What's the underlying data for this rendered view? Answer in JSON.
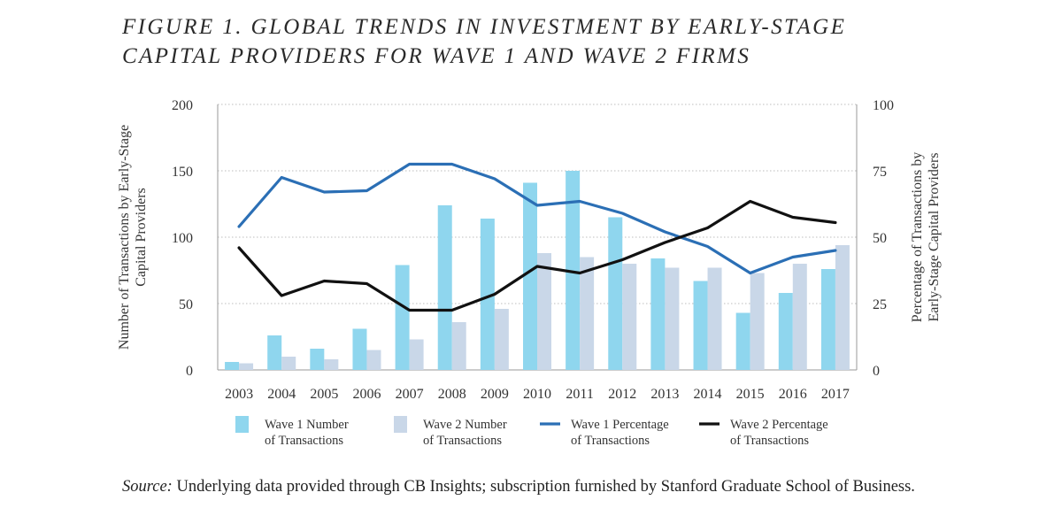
{
  "title": {
    "line1": "FIGURE 1. GLOBAL TRENDS IN INVESTMENT BY EARLY-STAGE",
    "line2": "CAPITAL PROVIDERS FOR WAVE 1 AND WAVE 2 FIRMS"
  },
  "source": {
    "label": "Source:",
    "text": " Underlying data provided through CB Insights; subscription furnished by Stanford Graduate School of Business."
  },
  "chart_data": {
    "type": "bar",
    "categories": [
      "2003",
      "2004",
      "2005",
      "2006",
      "2007",
      "2008",
      "2009",
      "2010",
      "2011",
      "2012",
      "2013",
      "2014",
      "2015",
      "2016",
      "2017"
    ],
    "y_left": {
      "label": [
        "Number of Transactions by Early-Stage",
        "Capital Providers"
      ],
      "ylim": [
        0,
        200
      ],
      "ticks": [
        "0",
        "50",
        "100",
        "150",
        "200"
      ]
    },
    "y_right": {
      "label": [
        "Percentage of Transactions by",
        "Early-Stage Capital Providers"
      ],
      "ylim": [
        0,
        100
      ],
      "ticks": [
        "0",
        "25",
        "50",
        "75",
        "100"
      ]
    },
    "grid": "horizontal dotted",
    "legend_position": "bottom",
    "series": [
      {
        "name": [
          "Wave 1 Number",
          "of Transactions"
        ],
        "kind": "bar",
        "axis": "left",
        "color": "#8fd6ee",
        "values": [
          6,
          26,
          16,
          31,
          79,
          124,
          114,
          141,
          150,
          115,
          84,
          67,
          43,
          58,
          76
        ]
      },
      {
        "name": [
          "Wave 2 Number",
          "of Transactions"
        ],
        "kind": "bar",
        "axis": "left",
        "color": "#c9d7e8",
        "values": [
          5,
          10,
          8,
          15,
          23,
          36,
          46,
          88,
          85,
          80,
          77,
          77,
          73,
          80,
          94
        ]
      },
      {
        "name": [
          "Wave 1 Percentage",
          "of Transactions"
        ],
        "kind": "line",
        "axis": "right",
        "color": "#2b6fb5",
        "values": [
          54,
          72.5,
          67,
          67.5,
          77.5,
          77.5,
          72,
          62,
          63.5,
          59,
          52,
          46.5,
          36.5,
          42.5,
          45
        ]
      },
      {
        "name": [
          "Wave 2 Percentage",
          "of Transactions"
        ],
        "kind": "line",
        "axis": "right",
        "color": "#111111",
        "values": [
          46,
          28,
          33.5,
          32.5,
          22.5,
          22.5,
          28.5,
          39,
          36.5,
          41.5,
          48,
          53.5,
          63.5,
          57.5,
          55.5
        ]
      }
    ]
  }
}
